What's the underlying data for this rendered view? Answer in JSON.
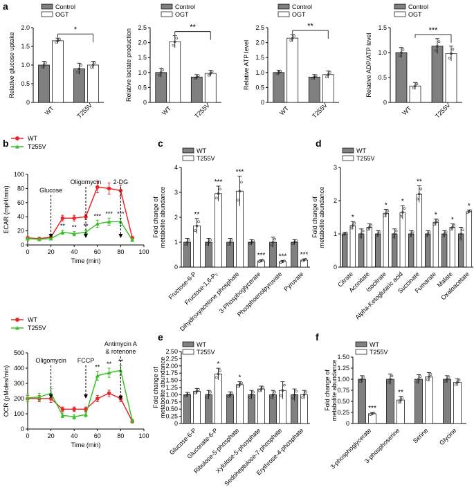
{
  "colors": {
    "control": "#808080",
    "treat": "#ffffff",
    "wt_line": "#e8262b",
    "t255v_line": "#3bbf2a",
    "axis": "#000000"
  },
  "chart_data": [
    {
      "panel": "a",
      "type": "bar",
      "ylabel": "Relative glucose uptake",
      "legend": [
        "Control",
        "OGT"
      ],
      "categories": [
        "WT",
        "T255V"
      ],
      "series": [
        {
          "name": "Control",
          "values": [
            1.0,
            0.9
          ],
          "err": [
            0.1,
            0.15
          ]
        },
        {
          "name": "OGT",
          "values": [
            1.65,
            1.0
          ],
          "err": [
            0.07,
            0.1
          ]
        }
      ],
      "ylim": [
        0,
        2.0
      ],
      "yticks": [
        "0",
        "0.5",
        "1.0",
        "1.5",
        "2.0"
      ],
      "significance": "*"
    },
    {
      "panel": "a",
      "type": "bar",
      "ylabel": "Relative lactate production",
      "legend": [
        "Control",
        "OGT"
      ],
      "categories": [
        "WT",
        "T255V"
      ],
      "series": [
        {
          "name": "Control",
          "values": [
            1.0,
            0.85
          ],
          "err": [
            0.15,
            0.08
          ]
        },
        {
          "name": "OGT",
          "values": [
            2.03,
            0.97
          ],
          "err": [
            0.2,
            0.1
          ]
        }
      ],
      "ylim": [
        0,
        2.5
      ],
      "yticks": [
        "0",
        "0.5",
        "1.0",
        "1.5",
        "2.0",
        "2.5"
      ],
      "significance": "**"
    },
    {
      "panel": "a",
      "type": "bar",
      "ylabel": "Relative ATP level",
      "legend": [
        "Control",
        "OGT"
      ],
      "categories": [
        "WT",
        "T255V"
      ],
      "series": [
        {
          "name": "Control",
          "values": [
            1.0,
            0.85
          ],
          "err": [
            0.08,
            0.08
          ]
        },
        {
          "name": "OGT",
          "values": [
            2.15,
            0.93
          ],
          "err": [
            0.12,
            0.12
          ]
        }
      ],
      "ylim": [
        0,
        2.5
      ],
      "yticks": [
        "0",
        "0.5",
        "1.0",
        "1.5",
        "2.0",
        "2.5"
      ],
      "significance": "**"
    },
    {
      "panel": "a",
      "type": "bar",
      "ylabel": "Relative ADP/ATP level",
      "legend": [
        "Control",
        "OGT"
      ],
      "categories": [
        "WT",
        "T255V"
      ],
      "series": [
        {
          "name": "Control",
          "values": [
            1.0,
            1.13
          ],
          "err": [
            0.1,
            0.15
          ]
        },
        {
          "name": "OGT",
          "values": [
            0.33,
            0.98
          ],
          "err": [
            0.07,
            0.15
          ]
        }
      ],
      "ylim": [
        0,
        1.5
      ],
      "yticks": [
        "0",
        "0.5",
        "1.0",
        "1.5"
      ],
      "significance": "***"
    },
    {
      "panel": "b",
      "type": "line",
      "ylabel": "ECAR (mpH/min)",
      "xlabel": "Time (min)",
      "xlim": [
        0,
        100
      ],
      "ylim": [
        0,
        100
      ],
      "xticks": [
        "0",
        "20",
        "40",
        "60",
        "80",
        "100"
      ],
      "yticks": [
        "0",
        "20",
        "40",
        "60",
        "80",
        "100"
      ],
      "x": [
        0,
        10,
        20,
        30,
        40,
        50,
        60,
        70,
        80,
        90
      ],
      "series": [
        {
          "name": "WT",
          "values": [
            10,
            9,
            11,
            38,
            38,
            40,
            82,
            80,
            77,
            10
          ],
          "err": [
            2,
            2,
            2,
            4,
            4,
            4,
            8,
            8,
            8,
            2
          ]
        },
        {
          "name": "T255V",
          "values": [
            9,
            8,
            9,
            18,
            16,
            18,
            30,
            33,
            33,
            7
          ],
          "err": [
            2,
            2,
            2,
            3,
            3,
            3,
            5,
            5,
            5,
            2
          ]
        }
      ],
      "annotations": [
        "Glucose",
        "Oligomycin",
        "2-DG"
      ],
      "sig": [
        "**",
        "**",
        "**",
        "***",
        "***",
        "***"
      ]
    },
    {
      "panel": "b",
      "type": "line",
      "ylabel": "OCR (pMoles/min)",
      "xlabel": "Time (min)",
      "xlim": [
        0,
        100
      ],
      "ylim": [
        0,
        500
      ],
      "xticks": [
        "0",
        "20",
        "40",
        "60",
        "80",
        "100"
      ],
      "yticks": [
        "0",
        "100",
        "200",
        "300",
        "400",
        "500"
      ],
      "x": [
        0,
        10,
        20,
        30,
        40,
        50,
        60,
        70,
        80,
        90
      ],
      "series": [
        {
          "name": "WT",
          "values": [
            200,
            200,
            200,
            130,
            130,
            130,
            200,
            235,
            200,
            50
          ],
          "err": [
            20,
            20,
            25,
            15,
            15,
            15,
            20,
            20,
            20,
            10
          ]
        },
        {
          "name": "T255V",
          "values": [
            205,
            210,
            235,
            90,
            80,
            95,
            350,
            370,
            385,
            55
          ],
          "err": [
            25,
            25,
            30,
            15,
            15,
            15,
            30,
            30,
            30,
            10
          ]
        }
      ],
      "annotations": [
        "Oligomycin",
        "FCCP",
        "Antimycin A",
        "& rotenone"
      ],
      "sig": [
        "**",
        "**",
        "**"
      ]
    },
    {
      "panel": "c",
      "type": "bar",
      "ylabel": "Fold change of",
      "ylabel2": "metabolite abundance",
      "legend": [
        "WT",
        "T255V"
      ],
      "categories": [
        "Fructose-6-P",
        "Fructose-1,6-P₂",
        "Dihydroxyacetone phosphate",
        "3-Phosphoglycerate",
        "Phosphoenolpyruvate",
        "Pyruvate"
      ],
      "series": [
        {
          "name": "WT",
          "values": [
            1.0,
            1.0,
            1.0,
            1.0,
            1.0,
            1.0
          ],
          "err": [
            0.15,
            0.15,
            0.15,
            0.1,
            0.2,
            0.1
          ]
        },
        {
          "name": "T255V",
          "values": [
            1.65,
            2.95,
            3.05,
            0.25,
            0.22,
            0.28
          ],
          "err": [
            0.3,
            0.3,
            0.6,
            0.05,
            0.05,
            0.05
          ]
        }
      ],
      "ylim": [
        0,
        4
      ],
      "yticks": [
        "0",
        "1",
        "2",
        "3",
        "4"
      ],
      "sig": [
        "**",
        "***",
        "***",
        "***",
        "***",
        "***"
      ]
    },
    {
      "panel": "d",
      "type": "bar",
      "ylabel": "Fold change of",
      "ylabel2": "metabolite abundance",
      "legend": [
        "WT",
        "T255V"
      ],
      "categories": [
        "Citrate",
        "Aconitate",
        "Isocitrate",
        "Alpha-Ketoglutaric acid",
        "Succinate",
        "Fumarate",
        "Malate",
        "Oxaloacetate"
      ],
      "series": [
        {
          "name": "WT",
          "values": [
            1.0,
            1.0,
            1.0,
            1.0,
            1.0,
            1.0,
            1.0,
            1.0
          ],
          "err": [
            0.05,
            0.15,
            0.1,
            0.15,
            0.1,
            0.1,
            0.1,
            0.2
          ]
        },
        {
          "name": "T255V",
          "values": [
            1.25,
            1.2,
            1.62,
            1.65,
            2.2,
            1.35,
            1.2,
            1.67
          ],
          "err": [
            0.12,
            0.1,
            0.12,
            0.2,
            0.25,
            0.1,
            0.1,
            0.05
          ]
        }
      ],
      "ylim": [
        0,
        3
      ],
      "yticks": [
        "0",
        "1",
        "2",
        "3"
      ],
      "sig": [
        "*",
        "",
        "*",
        "*",
        "**",
        "*",
        "*",
        "*"
      ]
    },
    {
      "panel": "e",
      "type": "bar",
      "ylabel": "Fold change of",
      "ylabel2": "metabolite abundance",
      "legend": [
        "WT",
        "T255V"
      ],
      "categories": [
        "Glucose-6-P",
        "Gluconate-6-P",
        "Ribulose-5-phosphate",
        "Xylulose-5-phosphate",
        "Sedoheptulose-7-phosphate",
        "Erythrose-4-phosphate"
      ],
      "series": [
        {
          "name": "WT",
          "values": [
            1.0,
            1.0,
            1.0,
            1.0,
            1.0,
            1.0
          ],
          "err": [
            0.08,
            0.15,
            0.1,
            0.15,
            0.15,
            0.2
          ]
        },
        {
          "name": "T255V",
          "values": [
            1.12,
            1.72,
            1.35,
            1.2,
            1.15,
            1.0
          ],
          "err": [
            0.1,
            0.2,
            0.1,
            0.1,
            0.3,
            0.15
          ]
        }
      ],
      "ylim": [
        0,
        2.5
      ],
      "yticks": [
        "0",
        "0.25",
        "0.50",
        "0.75",
        "1.00",
        "1.25",
        "1.50",
        "1.75",
        "2.00",
        "2.25",
        "2.50"
      ],
      "sig": [
        "",
        "*",
        "*",
        "",
        "",
        ""
      ]
    },
    {
      "panel": "f",
      "type": "bar",
      "ylabel": "Fold change of",
      "ylabel2": "metabolite abundance",
      "legend": [
        "WT",
        "T255V"
      ],
      "categories": [
        "3-phosphoglycerate",
        "3-phosphoserine",
        "Serine",
        "Glycine"
      ],
      "series": [
        {
          "name": "WT",
          "values": [
            1.0,
            1.0,
            1.0,
            1.0
          ],
          "err": [
            0.08,
            0.12,
            0.1,
            0.08
          ]
        },
        {
          "name": "T255V",
          "values": [
            0.22,
            0.53,
            1.05,
            0.93
          ],
          "err": [
            0.03,
            0.08,
            0.1,
            0.08
          ]
        }
      ],
      "ylim": [
        0,
        1.5
      ],
      "yticks": [
        "0",
        "0.25",
        "0.50",
        "0.75",
        "1.00",
        "1.25",
        "1.50"
      ],
      "sig": [
        "***",
        "**",
        "",
        ""
      ]
    }
  ],
  "panel_letters": [
    "a",
    "b",
    "c",
    "d",
    "e",
    "f"
  ]
}
